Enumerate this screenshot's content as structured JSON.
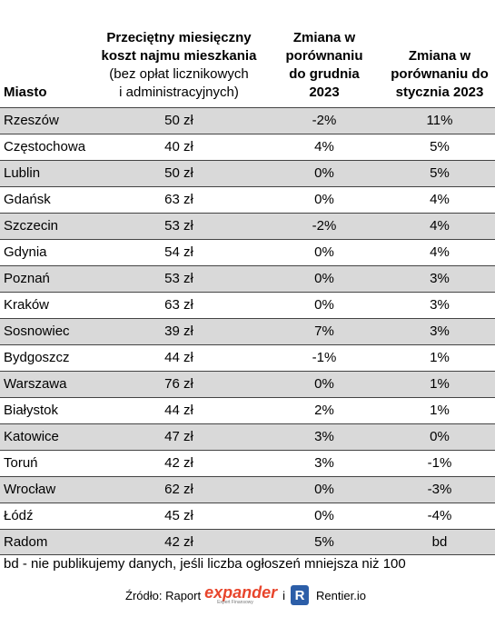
{
  "table": {
    "columns": [
      {
        "lines": [
          "Miasto"
        ]
      },
      {
        "lines": [
          "Przeciętny miesięczny",
          "koszt najmu mieszkania",
          "(bez opłat licznikowych",
          "i administracyjnych)"
        ]
      },
      {
        "lines": [
          "Zmiana w",
          "porównaniu",
          "do grudnia",
          "2023"
        ]
      },
      {
        "lines": [
          "Zmiana w",
          "porównaniu do",
          "stycznia 2023"
        ]
      }
    ],
    "rows": [
      [
        "Rzeszów",
        "50 zł",
        "-2%",
        "11%"
      ],
      [
        "Częstochowa",
        "40 zł",
        "4%",
        "5%"
      ],
      [
        "Lublin",
        "50 zł",
        "0%",
        "5%"
      ],
      [
        "Gdańsk",
        "63 zł",
        "0%",
        "4%"
      ],
      [
        "Szczecin",
        "53 zł",
        "-2%",
        "4%"
      ],
      [
        "Gdynia",
        "54 zł",
        "0%",
        "4%"
      ],
      [
        "Poznań",
        "53 zł",
        "0%",
        "3%"
      ],
      [
        "Kraków",
        "63 zł",
        "0%",
        "3%"
      ],
      [
        "Sosnowiec",
        "39 zł",
        "7%",
        "3%"
      ],
      [
        "Bydgoszcz",
        "44 zł",
        "-1%",
        "1%"
      ],
      [
        "Warszawa",
        "76 zł",
        "0%",
        "1%"
      ],
      [
        "Białystok",
        "44 zł",
        "2%",
        "1%"
      ],
      [
        "Katowice",
        "47 zł",
        "3%",
        "0%"
      ],
      [
        "Toruń",
        "42 zł",
        "3%",
        "-1%"
      ],
      [
        "Wrocław",
        "62 zł",
        "0%",
        "-3%"
      ],
      [
        "Łódź",
        "45 zł",
        "0%",
        "-4%"
      ],
      [
        "Radom",
        "42 zł",
        "5%",
        "bd"
      ]
    ]
  },
  "note": "bd - nie publikujemy danych, jeśli liczba ogłoszeń mniejsza niż 100",
  "source": {
    "label": "Źródło: Raport",
    "logo1": "expander",
    "logo1_tagline": "Expert Finansowy",
    "joiner": "i",
    "logo2_mark": "R",
    "logo2": "Rentier.io"
  }
}
